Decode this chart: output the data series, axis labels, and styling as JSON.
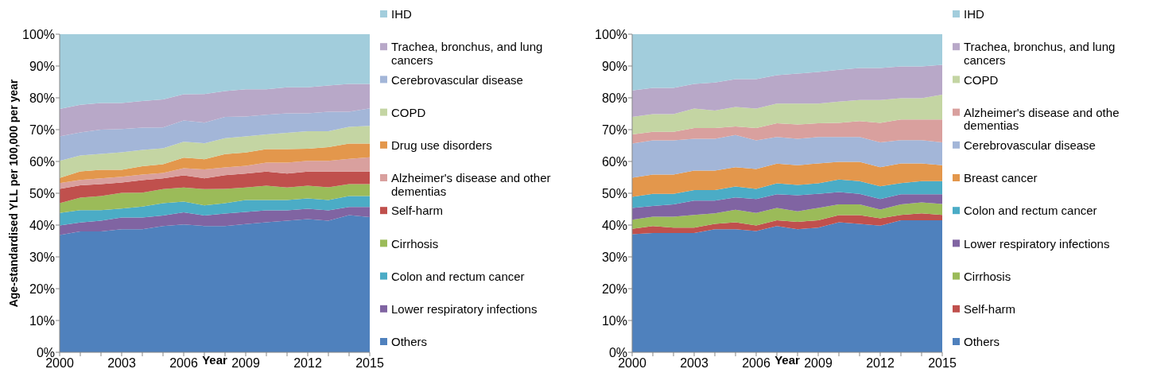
{
  "chart_data": [
    {
      "type": "area",
      "stacked": true,
      "legend": "right",
      "xlabel": "Year",
      "ylabel": "Age-standardised YLL per 100,000 per year",
      "x": [
        2000,
        2001,
        2002,
        2003,
        2004,
        2005,
        2006,
        2007,
        2008,
        2009,
        2010,
        2011,
        2012,
        2013,
        2014,
        2015
      ],
      "xlim": [
        2000,
        2015
      ],
      "xticks": [
        2000,
        {
          "value": 2001,
          "label": null
        },
        {
          "value": 2002,
          "label": null
        },
        2003,
        {
          "value": 2004,
          "label": null
        },
        {
          "value": 2005,
          "label": null
        },
        2006,
        {
          "value": 2007,
          "label": null
        },
        {
          "value": 2008,
          "label": null
        },
        2009,
        {
          "value": 2010,
          "label": null
        },
        {
          "value": 2011,
          "label": null
        },
        2012,
        {
          "value": 2013,
          "label": null
        },
        {
          "value": 2014,
          "label": null
        },
        2015
      ],
      "ylim": [
        0,
        100
      ],
      "yticks": [
        {
          "value": 0,
          "label": "0%"
        },
        {
          "value": 10,
          "label": "10%"
        },
        {
          "value": 20,
          "label": "20%"
        },
        {
          "value": 30,
          "label": "30%"
        },
        {
          "value": 40,
          "label": "40%"
        },
        {
          "value": 50,
          "label": "50%"
        },
        {
          "value": 60,
          "label": "60%"
        },
        {
          "value": 70,
          "label": "70%"
        },
        {
          "value": 80,
          "label": "80%"
        },
        {
          "value": 90,
          "label": "90%"
        },
        {
          "value": 100,
          "label": "100%"
        }
      ],
      "series": [
        {
          "name": "Others",
          "color": "#4f81bd",
          "values": [
            36.9,
            38.0,
            38.0,
            38.7,
            38.7,
            39.7,
            40.2,
            39.7,
            39.7,
            40.3,
            40.9,
            41.4,
            41.9,
            41.4,
            43.1,
            42.5
          ]
        },
        {
          "name": "Lower respiratory infections",
          "color": "#8064a2",
          "values": [
            3.0,
            2.8,
            3.4,
            3.7,
            3.7,
            3.3,
            3.8,
            3.3,
            3.9,
            3.8,
            3.7,
            3.2,
            3.2,
            3.2,
            2.6,
            3.2
          ]
        },
        {
          "name": "Colon and rectum cancer",
          "color": "#4bacc6",
          "values": [
            3.9,
            3.9,
            3.3,
            2.8,
            3.4,
            3.9,
            3.4,
            3.2,
            3.3,
            3.8,
            3.3,
            3.3,
            3.3,
            3.3,
            3.4,
            3.4
          ]
        },
        {
          "name": "Cirrhosis",
          "color": "#9bbb59",
          "values": [
            3.1,
            3.9,
            4.4,
            4.9,
            4.4,
            4.4,
            4.4,
            5.1,
            4.5,
            3.9,
            4.5,
            3.9,
            4.0,
            4.0,
            3.8,
            3.8
          ]
        },
        {
          "name": "Self-harm",
          "color": "#c0504d",
          "values": [
            4.5,
            3.9,
            3.8,
            3.3,
            3.9,
            3.4,
            3.8,
            3.4,
            4.3,
            4.4,
            4.4,
            4.4,
            4.4,
            4.9,
            3.9,
            3.9
          ]
        },
        {
          "name": "Alzheimer's disease and other dementias",
          "color": "#d9a09e",
          "values": [
            1.8,
            1.7,
            1.8,
            1.8,
            1.8,
            1.7,
            2.3,
            2.8,
            2.4,
            2.4,
            2.8,
            3.4,
            3.4,
            3.4,
            4.0,
            4.5
          ]
        },
        {
          "name": "Drug use disorders",
          "color": "#e3974c",
          "values": [
            1.6,
            2.7,
            2.7,
            2.2,
            2.6,
            2.7,
            3.3,
            3.2,
            4.2,
            4.2,
            4.3,
            4.3,
            3.8,
            4.3,
            4.8,
            4.3
          ]
        },
        {
          "name": "COPD",
          "color": "#c4d5a3",
          "values": [
            5.4,
            5.0,
            5.0,
            5.5,
            5.1,
            5.0,
            5.0,
            5.0,
            5.0,
            5.1,
            4.6,
            5.1,
            5.5,
            5.0,
            5.3,
            5.6
          ]
        },
        {
          "name": "Cerebrovascular disease",
          "color": "#a3b6d8",
          "values": [
            7.7,
            7.2,
            7.6,
            7.3,
            7.0,
            6.6,
            6.7,
            6.5,
            6.7,
            6.2,
            6.2,
            6.1,
            5.6,
            6.1,
            4.7,
            5.5
          ]
        },
        {
          "name": "Trachea, bronchus, and lung cancers",
          "color": "#b8a8c8",
          "values": [
            8.6,
            8.7,
            8.4,
            8.2,
            8.4,
            8.8,
            8.2,
            9.0,
            8.1,
            8.6,
            8.0,
            8.2,
            8.2,
            8.3,
            8.8,
            7.7
          ]
        },
        {
          "name": "IHD",
          "color": "#a2cddc",
          "values": [
            23.5,
            22.2,
            21.6,
            21.6,
            21.0,
            20.5,
            18.9,
            18.8,
            17.9,
            17.3,
            17.3,
            16.7,
            16.7,
            16.1,
            15.6,
            15.6
          ]
        }
      ]
    },
    {
      "type": "area",
      "stacked": true,
      "legend": "right",
      "xlabel": "Year",
      "x": [
        2000,
        2001,
        2002,
        2003,
        2004,
        2005,
        2006,
        2007,
        2008,
        2009,
        2010,
        2011,
        2012,
        2013,
        2014,
        2015
      ],
      "xlim": [
        2000,
        2015
      ],
      "xticks": [
        2000,
        {
          "value": 2001,
          "label": null
        },
        {
          "value": 2002,
          "label": null
        },
        2003,
        {
          "value": 2004,
          "label": null
        },
        {
          "value": 2005,
          "label": null
        },
        2006,
        {
          "value": 2007,
          "label": null
        },
        {
          "value": 2008,
          "label": null
        },
        2009,
        {
          "value": 2010,
          "label": null
        },
        {
          "value": 2011,
          "label": null
        },
        2012,
        {
          "value": 2013,
          "label": null
        },
        {
          "value": 2014,
          "label": null
        },
        2015
      ],
      "ylim": [
        0,
        100
      ],
      "yticks": [
        {
          "value": 0,
          "label": "0%"
        },
        {
          "value": 10,
          "label": "10%"
        },
        {
          "value": 20,
          "label": "20%"
        },
        {
          "value": 30,
          "label": "30%"
        },
        {
          "value": 40,
          "label": "40%"
        },
        {
          "value": 50,
          "label": "50%"
        },
        {
          "value": 60,
          "label": "60%"
        },
        {
          "value": 70,
          "label": "70%"
        },
        {
          "value": 80,
          "label": "80%"
        },
        {
          "value": 90,
          "label": "90%"
        },
        {
          "value": 100,
          "label": "100%"
        }
      ],
      "series": [
        {
          "name": "Others",
          "color": "#4f81bd",
          "values": [
            37.1,
            37.5,
            37.5,
            37.5,
            38.7,
            38.7,
            38.1,
            39.7,
            38.7,
            39.2,
            40.9,
            40.4,
            39.8,
            41.5,
            41.5,
            41.5
          ]
        },
        {
          "name": "Self-harm",
          "color": "#c0504d",
          "values": [
            1.7,
            2.2,
            1.7,
            1.7,
            1.7,
            2.2,
            1.8,
            1.8,
            2.3,
            2.3,
            2.2,
            2.7,
            2.3,
            1.7,
            2.2,
            1.7
          ]
        },
        {
          "name": "Cirrhosis",
          "color": "#9bbb59",
          "values": [
            2.9,
            2.9,
            3.4,
            4.0,
            3.3,
            3.9,
            3.9,
            3.9,
            3.3,
            3.9,
            3.4,
            3.4,
            2.8,
            3.3,
            3.4,
            3.4
          ]
        },
        {
          "name": "Lower respiratory infections",
          "color": "#8064a2",
          "values": [
            3.7,
            3.4,
            3.9,
            4.5,
            4.0,
            3.9,
            4.4,
            4.3,
            5.1,
            4.4,
            3.9,
            3.3,
            3.3,
            3.2,
            2.6,
            3.1
          ]
        },
        {
          "name": "Colon and rectum cancer",
          "color": "#4bacc6",
          "values": [
            3.5,
            3.8,
            3.3,
            3.3,
            3.3,
            3.4,
            3.2,
            3.4,
            3.2,
            3.3,
            3.9,
            4.0,
            4.0,
            3.5,
            4.1,
            4.1
          ]
        },
        {
          "name": "Breast cancer",
          "color": "#e3974c",
          "values": [
            6.0,
            6.1,
            6.1,
            6.1,
            6.1,
            6.1,
            6.2,
            6.2,
            6.2,
            6.3,
            5.6,
            6.1,
            6.0,
            6.2,
            5.6,
            5.0
          ]
        },
        {
          "name": "Cerebrovascular disease",
          "color": "#a3b6d8",
          "values": [
            10.7,
            10.7,
            10.7,
            10.0,
            10.0,
            10.1,
            9.0,
            8.4,
            8.3,
            8.3,
            7.8,
            7.8,
            7.8,
            7.3,
            7.3,
            7.2
          ]
        },
        {
          "name": "Alzheimer's disease and othe dementias",
          "color": "#d9a09e",
          "values": [
            2.9,
            2.7,
            2.7,
            3.4,
            3.4,
            2.7,
            3.9,
            4.3,
            4.5,
            4.3,
            4.4,
            5.0,
            6.1,
            6.5,
            6.5,
            7.2
          ]
        },
        {
          "name": "COPD",
          "color": "#c4d5a3",
          "values": [
            5.5,
            5.6,
            5.6,
            6.1,
            5.5,
            6.1,
            6.1,
            6.2,
            6.6,
            6.2,
            6.7,
            6.6,
            7.2,
            6.7,
            6.7,
            7.8
          ]
        },
        {
          "name": "Trachea, bronchus, and lung cancers",
          "color": "#b8a8c8",
          "values": [
            8.3,
            8.2,
            8.2,
            7.8,
            8.8,
            8.8,
            9.3,
            8.9,
            9.4,
            9.9,
            10.0,
            10.1,
            10.1,
            10.0,
            10.0,
            9.4
          ]
        },
        {
          "name": "IHD",
          "color": "#a2cddc",
          "values": [
            17.7,
            16.9,
            16.9,
            15.6,
            15.2,
            14.1,
            14.1,
            12.9,
            12.4,
            11.9,
            11.2,
            10.6,
            10.6,
            10.1,
            10.1,
            9.6
          ]
        }
      ]
    }
  ]
}
